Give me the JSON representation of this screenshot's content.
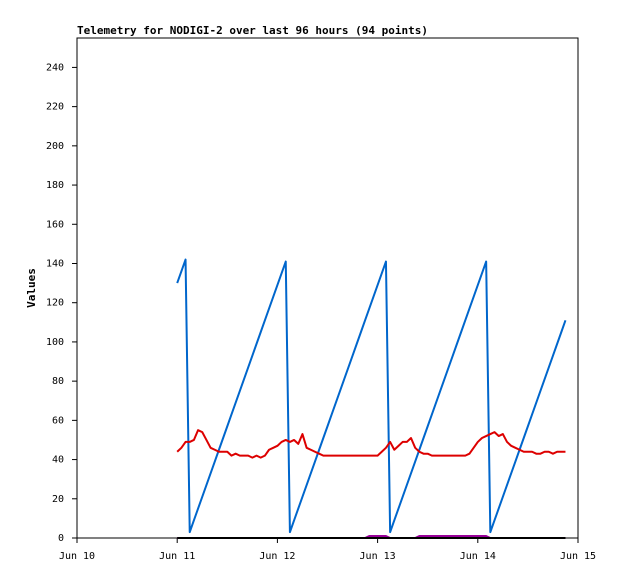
{
  "chart_data": {
    "type": "line",
    "title": "Telemetry for NODIGI-2 over last 96 hours (94 points)",
    "y_label": "Values",
    "xlim": [
      0,
      120
    ],
    "xticks": [
      {
        "value": 0,
        "label": "Jun 10"
      },
      {
        "value": 24,
        "label": "Jun 11"
      },
      {
        "value": 48,
        "label": "Jun 12"
      },
      {
        "value": 72,
        "label": "Jun 13"
      },
      {
        "value": 96,
        "label": "Jun 14"
      },
      {
        "value": 120,
        "label": "Jun 15"
      }
    ],
    "ylim": [
      0,
      255
    ],
    "yticks": [
      0,
      20,
      40,
      60,
      80,
      100,
      120,
      140,
      160,
      180,
      200,
      220,
      240
    ],
    "grid": false,
    "x": [
      24,
      25,
      26,
      27,
      28,
      29,
      30,
      31,
      32,
      33,
      34,
      35,
      36,
      37,
      38,
      39,
      40,
      41,
      42,
      43,
      44,
      45,
      46,
      47,
      48,
      49,
      50,
      51,
      52,
      53,
      54,
      55,
      56,
      57,
      58,
      59,
      60,
      61,
      62,
      63,
      64,
      65,
      66,
      67,
      68,
      69,
      70,
      71,
      72,
      73,
      74,
      75,
      76,
      77,
      78,
      79,
      80,
      81,
      82,
      83,
      84,
      85,
      86,
      87,
      88,
      89,
      90,
      91,
      92,
      93,
      94,
      95,
      96,
      97,
      98,
      99,
      100,
      101,
      102,
      103,
      104,
      105,
      106,
      107,
      108,
      109,
      110,
      111,
      112,
      113,
      114,
      115,
      116,
      117
    ],
    "series": [
      {
        "color": "#0066cc",
        "values": [
          130,
          136,
          142,
          3,
          9,
          15,
          21,
          27,
          33,
          39,
          45,
          51,
          57,
          63,
          69,
          75,
          81,
          87,
          93,
          99,
          105,
          111,
          117,
          123,
          129,
          135,
          141,
          3,
          9,
          15,
          21,
          27,
          33,
          39,
          45,
          51,
          57,
          63,
          69,
          75,
          81,
          87,
          93,
          99,
          105,
          111,
          117,
          123,
          129,
          135,
          141,
          3,
          9,
          15,
          21,
          27,
          33,
          39,
          45,
          51,
          57,
          63,
          69,
          75,
          81,
          87,
          93,
          99,
          105,
          111,
          117,
          123,
          129,
          135,
          141,
          3,
          9,
          15,
          21,
          27,
          33,
          39,
          45,
          51,
          57,
          63,
          69,
          75,
          81,
          87,
          93,
          99,
          105,
          111
        ]
      },
      {
        "color": "#dd0000",
        "values": [
          44,
          46,
          49,
          49,
          50,
          55,
          54,
          50,
          46,
          45,
          44,
          44,
          44,
          42,
          43,
          42,
          42,
          42,
          41,
          42,
          41,
          42,
          45,
          46,
          47,
          49,
          50,
          49,
          50,
          48,
          53,
          46,
          45,
          44,
          43,
          42,
          42,
          42,
          42,
          42,
          42,
          42,
          42,
          42,
          42,
          42,
          42,
          42,
          42,
          44,
          46,
          49,
          45,
          47,
          49,
          49,
          51,
          46,
          44,
          43,
          43,
          42,
          42,
          42,
          42,
          42,
          42,
          42,
          42,
          42,
          43,
          46,
          49,
          51,
          52,
          53,
          54,
          52,
          53,
          49,
          47,
          46,
          45,
          44,
          44,
          44,
          43,
          43,
          44,
          44,
          43,
          44,
          44,
          44
        ]
      },
      {
        "color": "#990099",
        "values": [
          0,
          0,
          0,
          0,
          0,
          0,
          0,
          0,
          0,
          0,
          0,
          0,
          0,
          0,
          0,
          0,
          0,
          0,
          0,
          0,
          0,
          0,
          0,
          0,
          0,
          0,
          0,
          0,
          0,
          0,
          0,
          0,
          0,
          0,
          0,
          0,
          0,
          0,
          0,
          0,
          0,
          0,
          0,
          0,
          0,
          0,
          1,
          1,
          1,
          1,
          1,
          0,
          0,
          0,
          0,
          0,
          0,
          0,
          1,
          1,
          1,
          1,
          1,
          1,
          1,
          1,
          1,
          1,
          1,
          1,
          1,
          1,
          1,
          1,
          1,
          0,
          0,
          0,
          0,
          0,
          0,
          0,
          0,
          0,
          0,
          0,
          0,
          0,
          0,
          0,
          0,
          0,
          0,
          0
        ]
      },
      {
        "color": "#000000",
        "values": [
          0,
          0,
          0,
          0,
          0,
          0,
          0,
          0,
          0,
          0,
          0,
          0,
          0,
          0,
          0,
          0,
          0,
          0,
          0,
          0,
          0,
          0,
          0,
          0,
          0,
          0,
          0,
          0,
          0,
          0,
          0,
          0,
          0,
          0,
          0,
          0,
          0,
          0,
          0,
          0,
          0,
          0,
          0,
          0,
          0,
          0,
          0,
          0,
          0,
          0,
          0,
          0,
          0,
          0,
          0,
          0,
          0,
          0,
          0,
          0,
          0,
          0,
          0,
          0,
          0,
          0,
          0,
          0,
          0,
          0,
          0,
          0,
          0,
          0,
          0,
          0,
          0,
          0,
          0,
          0,
          0,
          0,
          0,
          0,
          0,
          0,
          0,
          0,
          0,
          0,
          0,
          0,
          0,
          0
        ]
      }
    ]
  }
}
